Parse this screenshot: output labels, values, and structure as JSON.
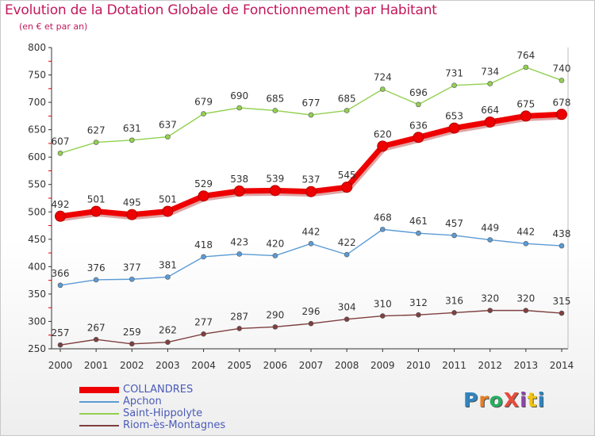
{
  "header": {
    "title": "Evolution de la Dotation Globale de Fonctionnement par Habitant",
    "subtitle": "(en € et par an)"
  },
  "logo": {
    "text": "ProXiti",
    "colors": [
      "#2e86c1",
      "#e67e22",
      "#27ae60",
      "#e74c3c",
      "#8e44ad",
      "#f1c40f",
      "#2e86c1"
    ]
  },
  "chart_data": {
    "type": "line",
    "title": "Evolution de la Dotation Globale de Fonctionnement par Habitant",
    "subtitle": "(en € et par an)",
    "xlabel": "",
    "ylabel": "",
    "ylim": [
      250,
      800
    ],
    "yticks": [
      250,
      300,
      350,
      400,
      450,
      500,
      550,
      600,
      650,
      700,
      750,
      800
    ],
    "grid": false,
    "legend_position": "bottom-left",
    "x": [
      "2000",
      "2001",
      "2002",
      "2003",
      "2004",
      "2005",
      "2006",
      "2007",
      "2008",
      "2009",
      "2010",
      "2011",
      "2012",
      "2013",
      "2014"
    ],
    "series": [
      {
        "name": "COLLANDRES",
        "color": "#ee0000",
        "highlight": true,
        "values": [
          492,
          501,
          495,
          501,
          529,
          538,
          539,
          537,
          545,
          620,
          636,
          653,
          664,
          675,
          678
        ]
      },
      {
        "name": "Apchon",
        "color": "#5b9bd5",
        "highlight": false,
        "values": [
          366,
          376,
          377,
          381,
          418,
          423,
          420,
          442,
          422,
          468,
          461,
          457,
          449,
          442,
          438
        ]
      },
      {
        "name": "Saint-Hippolyte",
        "color": "#92d050",
        "highlight": false,
        "values": [
          607,
          627,
          631,
          637,
          679,
          690,
          685,
          677,
          685,
          724,
          696,
          731,
          734,
          764,
          740
        ]
      },
      {
        "name": "Riom-ès-Montagnes",
        "color": "#7f3f3f",
        "highlight": false,
        "values": [
          257,
          267,
          259,
          262,
          277,
          287,
          290,
          296,
          304,
          310,
          312,
          316,
          320,
          320,
          315
        ]
      }
    ]
  }
}
